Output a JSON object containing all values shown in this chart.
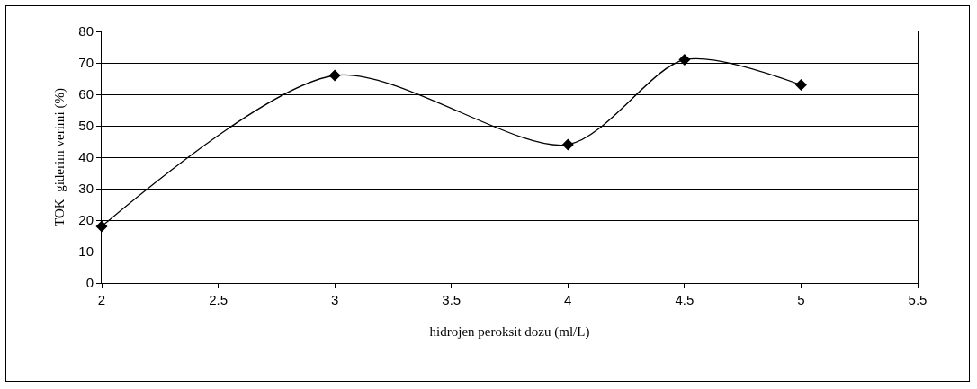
{
  "chart_data": {
    "type": "line",
    "xlabel": "hidrojen peroksit dozu (ml/L)",
    "ylabel": "TOK  giderim verimi (%)",
    "x": [
      2,
      3,
      4,
      4.5,
      5
    ],
    "series": [
      {
        "color": "#000000",
        "values": [
          18,
          66,
          44,
          71,
          63
        ]
      }
    ],
    "xlim": [
      2,
      5.5
    ],
    "xticks": [
      2,
      2.5,
      3,
      3.5,
      4,
      4.5,
      5,
      5.5
    ],
    "ylim": [
      0,
      80
    ],
    "yticks": [
      0,
      10,
      20,
      30,
      40,
      50,
      60,
      70,
      80
    ],
    "grid": "y",
    "marker": "diamond",
    "line_style": "solid"
  }
}
